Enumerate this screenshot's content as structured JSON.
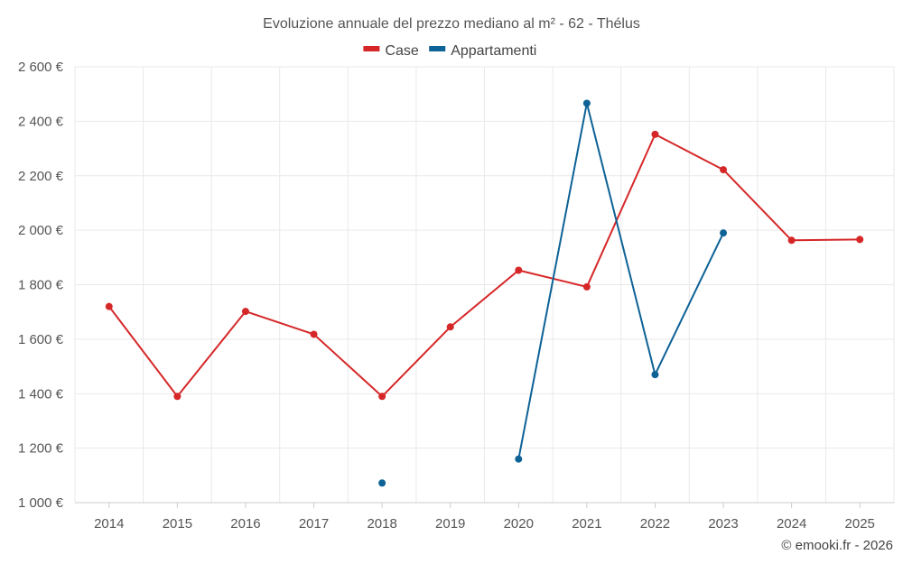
{
  "chart_data": {
    "type": "line",
    "title": "Evoluzione annuale del prezzo mediano al m² - 62 - Thélus",
    "x": [
      2014,
      2015,
      2016,
      2017,
      2018,
      2019,
      2020,
      2021,
      2022,
      2023,
      2024,
      2025
    ],
    "x_labels": [
      "2014",
      "2015",
      "2016",
      "2017",
      "2018",
      "2019",
      "2020",
      "2021",
      "2022",
      "2023",
      "2024",
      "2025"
    ],
    "ylim": [
      1000,
      2600
    ],
    "y_ticks": [
      1000,
      1200,
      1400,
      1600,
      1800,
      2000,
      2200,
      2400,
      2600
    ],
    "y_tick_labels": [
      "1 000 €",
      "1 200 €",
      "1 400 €",
      "1 600 €",
      "1 800 €",
      "2 000 €",
      "2 200 €",
      "2 400 €",
      "2 600 €"
    ],
    "xlabel": "",
    "ylabel": "",
    "grid": true,
    "legend_position": "top-center",
    "series": [
      {
        "name": "Case",
        "color": "#d62728",
        "values": [
          1720,
          1390,
          1702,
          1618,
          1390,
          1645,
          1853,
          1792,
          2352,
          2222,
          1963,
          1966
        ]
      },
      {
        "name": "Appartamenti",
        "color": "#0d6296",
        "values": [
          null,
          null,
          null,
          null,
          1072,
          null,
          1160,
          2466,
          1470,
          1990,
          null,
          null
        ]
      }
    ]
  },
  "credit": "© emooki.fr - 2026"
}
